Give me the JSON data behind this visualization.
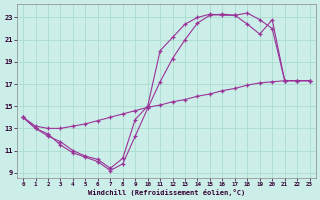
{
  "xlabel": "Windchill (Refroidissement éolien,°C)",
  "bg_color": "#cceee8",
  "grid_color": "#aaddcc",
  "line_color": "#993399",
  "xlim": [
    -0.5,
    23.5
  ],
  "ylim": [
    8.5,
    24.2
  ],
  "xticks": [
    0,
    1,
    2,
    3,
    4,
    5,
    6,
    7,
    8,
    9,
    10,
    11,
    12,
    13,
    14,
    15,
    16,
    17,
    18,
    19,
    20,
    21,
    22,
    23
  ],
  "yticks": [
    9,
    11,
    13,
    15,
    17,
    19,
    21,
    23
  ],
  "line1_x": [
    0,
    1,
    2,
    3,
    4,
    5,
    6,
    7,
    8,
    9,
    10,
    11,
    12,
    13,
    14,
    15,
    16,
    17,
    18,
    19,
    20,
    21,
    22,
    23
  ],
  "line1_y": [
    14.0,
    13.0,
    12.5,
    11.5,
    10.8,
    10.4,
    10.0,
    9.2,
    9.8,
    12.3,
    14.8,
    17.2,
    19.3,
    21.0,
    22.5,
    23.2,
    23.3,
    23.2,
    23.4,
    22.8,
    22.0,
    17.3,
    17.3,
    17.3
  ],
  "line2_x": [
    0,
    1,
    2,
    3,
    4,
    5,
    6,
    7,
    8,
    9,
    10,
    11,
    12,
    13,
    14,
    15,
    16,
    17,
    18,
    19,
    20,
    21,
    22,
    23
  ],
  "line2_y": [
    14.0,
    13.0,
    12.3,
    11.8,
    11.0,
    10.5,
    10.2,
    9.4,
    10.3,
    13.8,
    15.0,
    20.0,
    21.2,
    22.4,
    23.0,
    23.3,
    23.2,
    23.2,
    22.4,
    21.5,
    22.8,
    17.3,
    17.3,
    17.3
  ],
  "line3_x": [
    0,
    1,
    2,
    3,
    4,
    5,
    6,
    7,
    8,
    9,
    10,
    11,
    12,
    13,
    14,
    15,
    16,
    17,
    18,
    19,
    20,
    21,
    22,
    23
  ],
  "line3_y": [
    14.0,
    13.2,
    13.0,
    13.0,
    13.2,
    13.4,
    13.7,
    14.0,
    14.3,
    14.6,
    14.9,
    15.1,
    15.4,
    15.6,
    15.9,
    16.1,
    16.4,
    16.6,
    16.9,
    17.1,
    17.2,
    17.3,
    17.3,
    17.3
  ]
}
